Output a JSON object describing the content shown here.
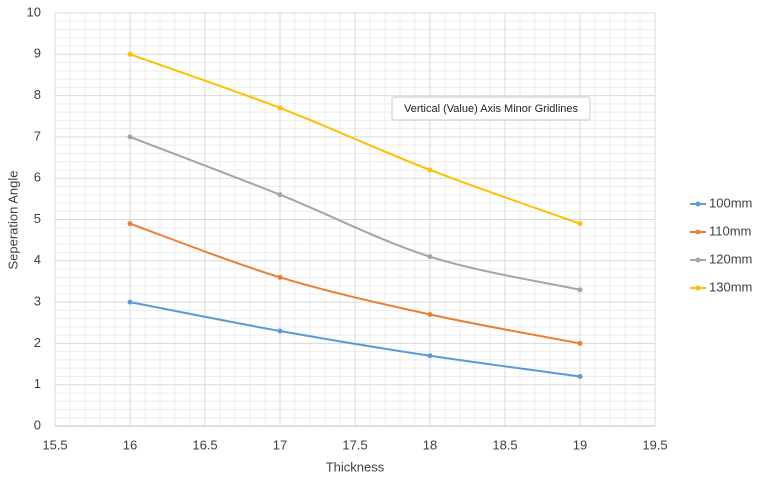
{
  "chart_data": {
    "type": "line",
    "x_label": "Thickness",
    "y_label": "Seperation Angle",
    "x": [
      16,
      17,
      18,
      19
    ],
    "series": [
      {
        "name": "100mm",
        "color": "#5b9bd5",
        "values": [
          3.0,
          2.3,
          1.7,
          1.2
        ]
      },
      {
        "name": "110mm",
        "color": "#ed7d31",
        "values": [
          4.9,
          3.6,
          2.7,
          2.0
        ]
      },
      {
        "name": "120mm",
        "color": "#a5a5a5",
        "values": [
          7.0,
          5.6,
          4.1,
          3.3
        ]
      },
      {
        "name": "130mm",
        "color": "#ffc000",
        "values": [
          9.0,
          7.7,
          6.2,
          4.9
        ]
      }
    ],
    "xlim": [
      15.5,
      19.5
    ],
    "xticks": [
      15.5,
      16,
      16.5,
      17,
      17.5,
      18,
      18.5,
      19,
      19.5
    ],
    "ylim": [
      0,
      10
    ],
    "yticks": [
      0,
      1,
      2,
      3,
      4,
      5,
      6,
      7,
      8,
      9,
      10
    ],
    "grid": true,
    "minor_grid": true,
    "smooth": true,
    "legend": "right",
    "tooltip": "Vertical (Value) Axis Minor Gridlines"
  }
}
